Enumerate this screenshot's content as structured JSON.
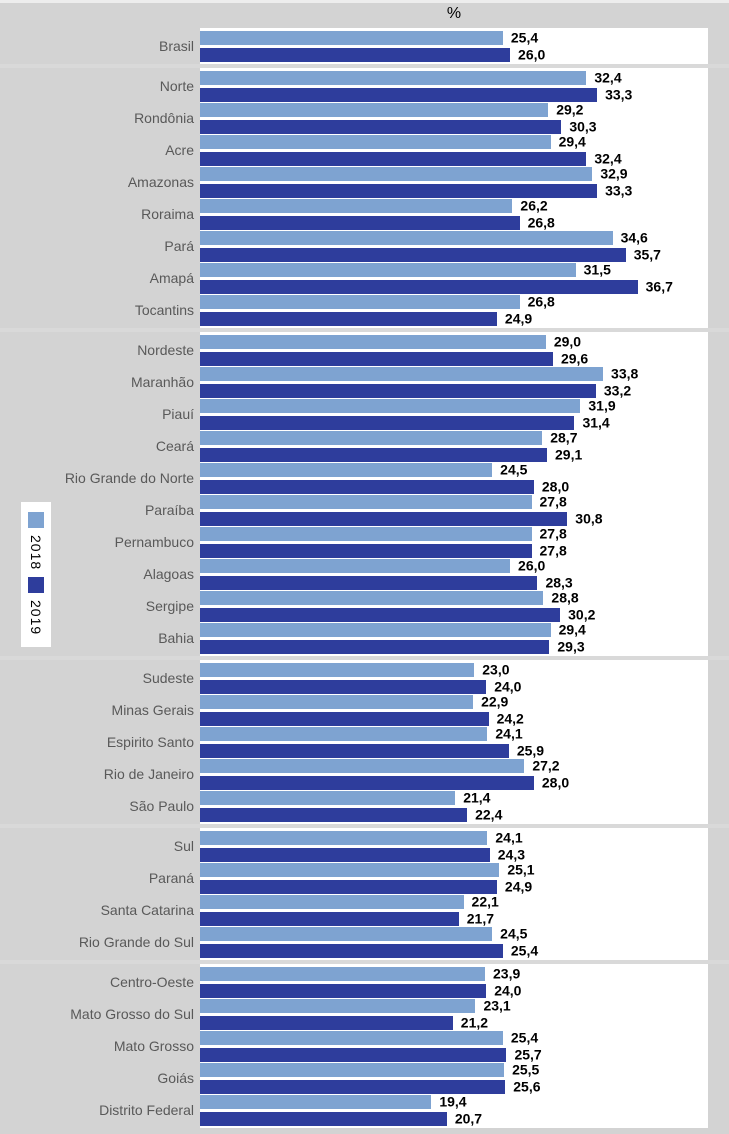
{
  "colors": {
    "background": "#d3d3d3",
    "panel": "#ffffff",
    "separator": "#d9d9d9",
    "row_label": "#595959",
    "value_label": "#000000",
    "series_2018": "#7ea3d1",
    "series_2019": "#2e3d9c"
  },
  "decimal_separator": ",",
  "chart_data": {
    "type": "bar",
    "orientation": "horizontal",
    "title": "%",
    "xlabel": "",
    "ylabel": "",
    "xlim": [
      0,
      42.6
    ],
    "grid": false,
    "legend_position": "left-middle",
    "series": [
      {
        "name": "2018",
        "color": "#7ea3d1"
      },
      {
        "name": "2019",
        "color": "#2e3d9c"
      }
    ],
    "groups": [
      {
        "rows": [
          {
            "label": "Brasil",
            "values": [
              25.4,
              26.0
            ]
          }
        ]
      },
      {
        "rows": [
          {
            "label": "Norte",
            "values": [
              32.4,
              33.3
            ]
          },
          {
            "label": "Rondônia",
            "values": [
              29.2,
              30.3
            ]
          },
          {
            "label": "Acre",
            "values": [
              29.4,
              32.4
            ]
          },
          {
            "label": "Amazonas",
            "values": [
              32.9,
              33.3
            ]
          },
          {
            "label": "Roraima",
            "values": [
              26.2,
              26.8
            ]
          },
          {
            "label": "Pará",
            "values": [
              34.6,
              35.7
            ]
          },
          {
            "label": "Amapá",
            "values": [
              31.5,
              36.7
            ]
          },
          {
            "label": "Tocantins",
            "values": [
              26.8,
              24.9
            ]
          }
        ]
      },
      {
        "rows": [
          {
            "label": "Nordeste",
            "values": [
              29.0,
              29.6
            ]
          },
          {
            "label": "Maranhão",
            "values": [
              33.8,
              33.2
            ]
          },
          {
            "label": "Piauí",
            "values": [
              31.9,
              31.4
            ]
          },
          {
            "label": "Ceará",
            "values": [
              28.7,
              29.1
            ]
          },
          {
            "label": "Rio Grande do Norte",
            "values": [
              24.5,
              28.0
            ]
          },
          {
            "label": "Paraíba",
            "values": [
              27.8,
              30.8
            ]
          },
          {
            "label": "Pernambuco",
            "values": [
              27.8,
              27.8
            ]
          },
          {
            "label": "Alagoas",
            "values": [
              26.0,
              28.3
            ]
          },
          {
            "label": "Sergipe",
            "values": [
              28.8,
              30.2
            ]
          },
          {
            "label": "Bahia",
            "values": [
              29.4,
              29.3
            ]
          }
        ]
      },
      {
        "rows": [
          {
            "label": "Sudeste",
            "values": [
              23.0,
              24.0
            ]
          },
          {
            "label": "Minas Gerais",
            "values": [
              22.9,
              24.2
            ]
          },
          {
            "label": "Espirito Santo",
            "values": [
              24.1,
              25.9
            ]
          },
          {
            "label": "Rio de Janeiro",
            "values": [
              27.2,
              28.0
            ]
          },
          {
            "label": "São Paulo",
            "values": [
              21.4,
              22.4
            ]
          }
        ]
      },
      {
        "rows": [
          {
            "label": "Sul",
            "values": [
              24.1,
              24.3
            ]
          },
          {
            "label": "Paraná",
            "values": [
              25.1,
              24.9
            ]
          },
          {
            "label": "Santa Catarina",
            "values": [
              22.1,
              21.7
            ]
          },
          {
            "label": "Rio Grande do Sul",
            "values": [
              24.5,
              25.4
            ]
          }
        ]
      },
      {
        "rows": [
          {
            "label": "Centro-Oeste",
            "values": [
              23.9,
              24.0
            ]
          },
          {
            "label": "Mato Grosso do Sul",
            "values": [
              23.1,
              21.2
            ]
          },
          {
            "label": "Mato Grosso",
            "values": [
              25.4,
              25.7
            ]
          },
          {
            "label": "Goiás",
            "values": [
              25.5,
              25.6
            ]
          },
          {
            "label": "Distrito Federal",
            "values": [
              19.4,
              20.7
            ]
          }
        ]
      }
    ]
  }
}
